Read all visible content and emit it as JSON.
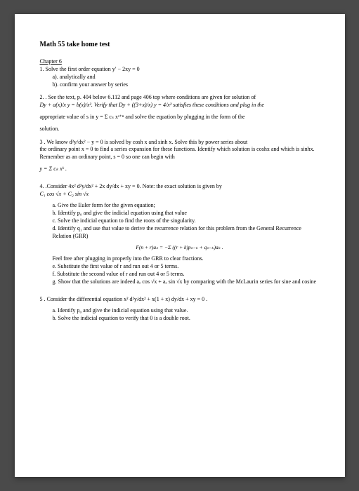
{
  "title": "Math 55 take home test",
  "chapter": "Chapter 6",
  "q1": {
    "line": "1. Solve the first order equation  y′ − 2xy = 0",
    "a": "a). analytically and",
    "b": "b). confirm your answer by series"
  },
  "q2": {
    "line1": "2. . See the text, p. 404 below 6.112 and page 406 top where conditions are given for solution of",
    "line2": "Dy + a(x)/x y = b(x)/x². Verify that Dy + ((3+x)/x) y = 4/x² satisfies these conditions and plug in the",
    "line3": "appropriate value of s in  y = Σ cₛ xˢ⁺ⁿ  and solve the equation by plugging in the form of the",
    "line4": "solution."
  },
  "q3": {
    "line1": "3 . We know  d²y/dx² − y = 0 is solved by cosh x and sinh x.  Solve this by power series about",
    "line2": "the ordinary point x = 0 to find a series expansion for these functions.  Identify which solution is coshx and which is sinhx. Remember as an ordinary point, s = 0 so one can begin with",
    "line3": "y = Σ cₖ xᵏ  ."
  },
  "q4": {
    "line1": "4. .Consider 4x² d²y/dx² + 2x dy/dx + xy = 0.  Note: the exact solution is given by",
    "line2": "C₁ cos √x + C₂ sin √x",
    "a": "a.  Give the Euler form for the given equation;",
    "b": "b.  Identify p₀ and give the indicial equation using that value",
    "c": "c.  Solve the indicial equation to find the roots of the singularity.",
    "d": "d.  Identify q₁ and use that value to derive the recurrence relation for this problem from the General Recurrence Relation (GRR)",
    "grr": "F(n + r)aₙ = −Σ ((r + k)pₙ₋ₖ + qₙ₋ₖ)aₖ .",
    "feel": "Feel free after plugging in properly into the GRR to clear fractions.",
    "e": "e.  Substitute the first value of r and run out 4 or 5 terms.",
    "f": "f.   Substitute the second value of r and run out 4 or 5 terms.",
    "g": "g.  Show that the solutions are indeed aₒ cos √x + aₒ sin √x by comparing with the McLaurin series for sine and cosine"
  },
  "q5": {
    "line1": "5 .  Consider the differential equation  x² d²y/dx² + x(1 + x) dy/dx + xy = 0 .",
    "a": "a.  Identify p₀ and give the indicial equation using that value.",
    "b": "b.  Solve the indicial equation to verify that 0 is a double root."
  }
}
